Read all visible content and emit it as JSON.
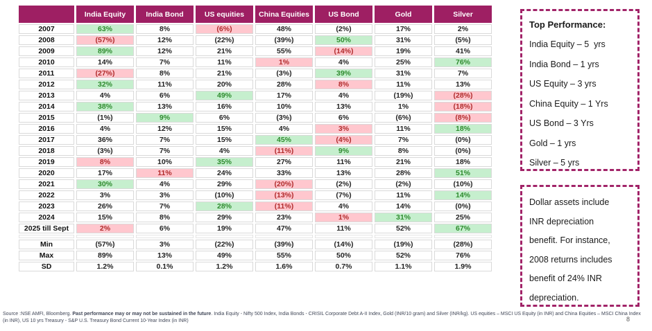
{
  "colors": {
    "accent": "#A12368",
    "header_bg": "#9E1F63",
    "header_text": "#FFFFFF",
    "green_bg": "#C6EFCE",
    "green_text": "#2E8B2E",
    "pink_bg": "#FFC7CE",
    "pink_text": "#B02B2B",
    "cell_border": "#D9D9D9"
  },
  "table": {
    "columns": [
      "India Equity",
      "India Bond",
      "US equities",
      "China Equities",
      "US Bond",
      "Gold",
      "Silver"
    ],
    "rows": [
      {
        "label": "2007",
        "values": [
          "63%",
          "8%",
          "(6%)",
          "48%",
          "(2%)",
          "17%",
          "2%"
        ],
        "highlights": [
          "g",
          "",
          "p",
          "",
          "",
          "",
          ""
        ]
      },
      {
        "label": "2008",
        "values": [
          "(57%)",
          "12%",
          "(22%)",
          "(39%)",
          "50%",
          "31%",
          "(5%)"
        ],
        "highlights": [
          "p",
          "",
          "",
          "",
          "g",
          "",
          ""
        ]
      },
      {
        "label": "2009",
        "values": [
          "89%",
          "12%",
          "21%",
          "55%",
          "(14%)",
          "19%",
          "41%"
        ],
        "highlights": [
          "g",
          "",
          "",
          "",
          "p",
          "",
          ""
        ]
      },
      {
        "label": "2010",
        "values": [
          "14%",
          "7%",
          "11%",
          "1%",
          "4%",
          "25%",
          "76%"
        ],
        "highlights": [
          "",
          "",
          "",
          "p",
          "",
          "",
          "g"
        ]
      },
      {
        "label": "2011",
        "values": [
          "(27%)",
          "8%",
          "21%",
          "(3%)",
          "39%",
          "31%",
          "7%"
        ],
        "highlights": [
          "p",
          "",
          "",
          "",
          "g",
          "",
          ""
        ]
      },
      {
        "label": "2012",
        "values": [
          "32%",
          "11%",
          "20%",
          "28%",
          "8%",
          "11%",
          "13%"
        ],
        "highlights": [
          "g",
          "",
          "",
          "",
          "p",
          "",
          ""
        ]
      },
      {
        "label": "2013",
        "values": [
          "4%",
          "6%",
          "49%",
          "17%",
          "4%",
          "(19%)",
          "(28%)"
        ],
        "highlights": [
          "",
          "",
          "g",
          "",
          "",
          "",
          "p"
        ]
      },
      {
        "label": "2014",
        "values": [
          "38%",
          "13%",
          "16%",
          "10%",
          "13%",
          "1%",
          "(18%)"
        ],
        "highlights": [
          "g",
          "",
          "",
          "",
          "",
          "",
          "p"
        ]
      },
      {
        "label": "2015",
        "values": [
          "(1%)",
          "9%",
          "6%",
          "(3%)",
          "6%",
          "(6%)",
          "(8%)"
        ],
        "highlights": [
          "",
          "g",
          "",
          "",
          "",
          "",
          "p"
        ]
      },
      {
        "label": "2016",
        "values": [
          "4%",
          "12%",
          "15%",
          "4%",
          "3%",
          "11%",
          "18%"
        ],
        "highlights": [
          "",
          "",
          "",
          "",
          "p",
          "",
          "g"
        ]
      },
      {
        "label": "2017",
        "values": [
          "36%",
          "7%",
          "15%",
          "45%",
          "(4%)",
          "7%",
          "(0%)"
        ],
        "highlights": [
          "",
          "",
          "",
          "g",
          "p",
          "",
          ""
        ]
      },
      {
        "label": "2018",
        "values": [
          "(3%)",
          "7%",
          "4%",
          "(11%)",
          "9%",
          "8%",
          "(0%)"
        ],
        "highlights": [
          "",
          "",
          "",
          "p",
          "g",
          "",
          ""
        ]
      },
      {
        "label": "2019",
        "values": [
          "8%",
          "10%",
          "35%",
          "27%",
          "11%",
          "21%",
          "18%"
        ],
        "highlights": [
          "p",
          "",
          "g",
          "",
          "",
          "",
          ""
        ]
      },
      {
        "label": "2020",
        "values": [
          "17%",
          "11%",
          "24%",
          "33%",
          "13%",
          "28%",
          "51%"
        ],
        "highlights": [
          "",
          "p",
          "",
          "",
          "",
          "",
          "g"
        ]
      },
      {
        "label": "2021",
        "values": [
          "30%",
          "4%",
          "29%",
          "(20%)",
          "(2%)",
          "(2%)",
          "(10%)"
        ],
        "highlights": [
          "g",
          "",
          "",
          "p",
          "",
          "",
          ""
        ]
      },
      {
        "label": "2022",
        "values": [
          "3%",
          "3%",
          "(10%)",
          "(13%)",
          "(7%)",
          "11%",
          "14%"
        ],
        "highlights": [
          "",
          "",
          "",
          "p",
          "",
          "",
          "g"
        ]
      },
      {
        "label": "2023",
        "values": [
          "26%",
          "7%",
          "28%",
          "(11%)",
          "4%",
          "14%",
          "(0%)"
        ],
        "highlights": [
          "",
          "",
          "g",
          "p",
          "",
          "",
          ""
        ]
      },
      {
        "label": "2024",
        "values": [
          "15%",
          "8%",
          "29%",
          "23%",
          "1%",
          "31%",
          "25%"
        ],
        "highlights": [
          "",
          "",
          "",
          "",
          "p",
          "g",
          ""
        ]
      },
      {
        "label": "2025 till Sept",
        "values": [
          "2%",
          "6%",
          "19%",
          "47%",
          "11%",
          "52%",
          "67%"
        ],
        "highlights": [
          "p",
          "",
          "",
          "",
          "",
          "",
          "g"
        ]
      }
    ],
    "stats": [
      {
        "label": "Min",
        "values": [
          "(57%)",
          "3%",
          "(22%)",
          "(39%)",
          "(14%)",
          "(19%)",
          "(28%)"
        ]
      },
      {
        "label": "Max",
        "values": [
          "89%",
          "13%",
          "49%",
          "55%",
          "50%",
          "52%",
          "76%"
        ]
      },
      {
        "label": "SD",
        "values": [
          "1.2%",
          "0.1%",
          "1.2%",
          "1.6%",
          "0.7%",
          "1.1%",
          "1.9%"
        ]
      }
    ]
  },
  "top_performance": {
    "title": "Top Performance:",
    "items": [
      "India Equity – 5  yrs",
      "India Bond – 1 yrs",
      "US Equity – 3 yrs",
      "China Equity – 1 Yrs",
      "US Bond – 3 Yrs",
      "Gold – 1 yrs",
      "Silver – 5 yrs"
    ]
  },
  "note": {
    "lines": [
      "Dollar assets include",
      "INR depreciation",
      "benefit. For instance,",
      "2008 returns includes",
      "benefit of 24% INR",
      "depreciation."
    ]
  },
  "footer": {
    "part1": "Source :NSE AMFI, Bloomberg. ",
    "bold": "Past performance may or may not be sustained in the future",
    "part2": ". India Equity - Nifty 500 Index, India Bonds - CRISIL Corporate Debt A-II Index, Gold (INR/10 gram) and Silver (INR/kg). US equities – MSCI US Equity (in INR) and China Equities – MSCI China Index (in INR), US 10 yrs Treasury - S&P U.S. Treasury Bond Current 10-Year Index (in INR)"
  },
  "page_number": "8"
}
